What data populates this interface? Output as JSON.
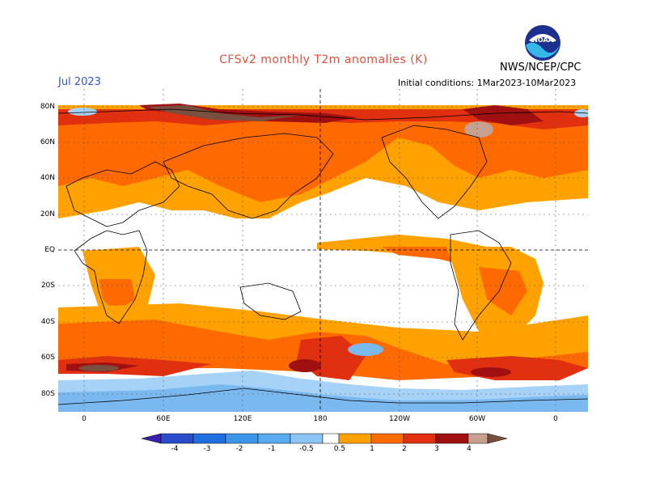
{
  "header": {
    "title": "CFSv2 monthly T2m anomalies (K)",
    "month": "Jul 2023",
    "initial_conditions": "Initial conditions: 1Mar2023-10Mar2023",
    "agency": "NWS/NCEP/CPC",
    "logo_text": "NOAA"
  },
  "axes": {
    "lat_labels": [
      "80N",
      "60N",
      "40N",
      "20N",
      "EQ",
      "20S",
      "40S",
      "60S",
      "80S"
    ],
    "lon_labels": [
      "0",
      "60E",
      "120E",
      "180",
      "120W",
      "60W",
      "0"
    ]
  },
  "colorbar": {
    "labels": [
      "-4",
      "-3",
      "-2",
      "-1",
      "-0.5",
      "0.5",
      "1",
      "2",
      "3",
      "4"
    ],
    "colors": [
      "#3a1fb0",
      "#2a4cc8",
      "#1f6fe0",
      "#3d95ea",
      "#8cc4f5",
      "#ffffff",
      "#ffa200",
      "#ff6a00",
      "#e03010",
      "#a01010",
      "#c8a090",
      "#7a4f40"
    ]
  },
  "map": {
    "land_outline_color": "#000000",
    "warm_colors": {
      "light": "#ffa200",
      "medium": "#ff6a00",
      "strong": "#e03010",
      "very_strong": "#a01010",
      "extreme": "#7a4f40"
    },
    "cool_colors": {
      "light": "#a6d2f7",
      "medium": "#7ab8f0"
    }
  }
}
